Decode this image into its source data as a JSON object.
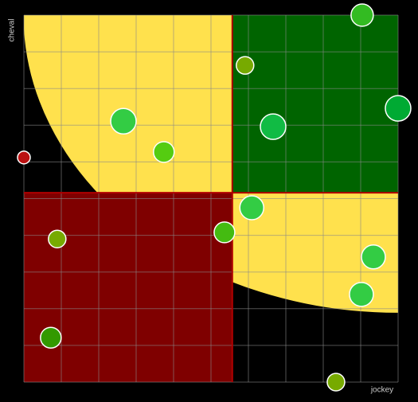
{
  "chart_data": {
    "type": "scatter",
    "x_label": "jockey",
    "y_label": "cheval",
    "xlim": [
      0,
      100
    ],
    "ylim": [
      0,
      100
    ],
    "xticks": [
      0,
      10,
      20,
      30,
      40,
      50,
      60,
      70,
      80,
      90,
      100
    ],
    "yticks": [
      0,
      10,
      20,
      30,
      40,
      50,
      60,
      70,
      80,
      90,
      100
    ],
    "grid": true,
    "x_threshold": 55.7,
    "y_threshold": 51.6,
    "curve_radii": [
      100,
      81
    ],
    "zone_colors": {
      "curve": "#ffe14d",
      "top_right": "#006400",
      "bottom_left": "#7f0000",
      "divider": "#b00000"
    },
    "x": [
      90.4,
      59.1,
      100,
      66.6,
      26.6,
      37.4,
      0,
      60.9,
      53.6,
      8.9,
      93.4,
      90.2,
      7.2,
      83.4
    ],
    "values": [
      100,
      86.3,
      74.6,
      69.6,
      71.1,
      62.7,
      61.2,
      47.5,
      40.8,
      39.0,
      34.1,
      23.9,
      12.1,
      0
    ],
    "sizes": [
      14,
      11,
      16,
      16,
      16,
      13,
      8,
      15,
      13,
      11,
      15,
      15,
      13,
      11
    ],
    "colors": [
      "#33bb22",
      "#77aa00",
      "#00aa33",
      "#11bb44",
      "#33cc44",
      "#55cc11",
      "#bb1111",
      "#33cc44",
      "#44bb11",
      "#77aa00",
      "#33cc44",
      "#33cc44",
      "#339900",
      "#77aa00"
    ]
  }
}
